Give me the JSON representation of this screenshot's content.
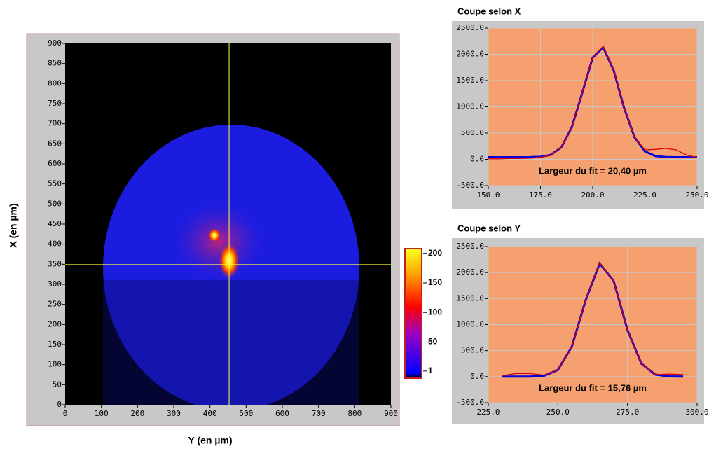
{
  "chart_data": [
    {
      "type": "heatmap",
      "xlabel": "Y (en µm)",
      "ylabel": "X (en µm)",
      "xlim": [
        0,
        900
      ],
      "xticks": [
        0,
        100,
        200,
        300,
        400,
        500,
        600,
        700,
        800,
        900
      ],
      "ylim": [
        0,
        900
      ],
      "yticks": [
        0,
        50,
        100,
        150,
        200,
        250,
        300,
        350,
        400,
        450,
        500,
        550,
        600,
        650,
        700,
        750,
        800,
        850,
        900
      ],
      "crosshair": {
        "x": 453,
        "y": 349
      },
      "clim": [
        -11,
        208
      ],
      "cticks": [
        1,
        50,
        100,
        150,
        200
      ]
    },
    {
      "type": "line",
      "title": "Coupe selon X",
      "annotation": "Largeur du fit = 20,40 µm",
      "x": [
        150,
        155,
        160,
        165,
        170,
        175,
        180,
        185,
        190,
        195,
        200,
        205,
        210,
        215,
        220,
        225,
        230,
        235,
        240,
        245,
        250
      ],
      "series": [
        {
          "color": "#0000e0",
          "values": [
            40,
            40,
            40,
            40,
            41,
            48,
            85,
            230,
            610,
            1270,
            1937,
            2135,
            1700,
            981,
            422,
            152,
            63,
            44,
            40,
            40,
            40
          ]
        },
        {
          "color": "#e00000",
          "values": [
            10,
            10,
            15,
            15,
            20,
            40,
            80,
            230,
            600,
            1280,
            1950,
            2150,
            1710,
            980,
            430,
            180,
            190,
            210,
            180,
            80,
            40
          ]
        }
      ],
      "xlim": [
        150,
        250
      ],
      "xticks": [
        {
          "value": 150,
          "label": "150.0"
        },
        {
          "value": 175,
          "label": "175.0"
        },
        {
          "value": 200,
          "label": "200.0"
        },
        {
          "value": 225,
          "label": "225.0"
        },
        {
          "value": 250,
          "label": "250.0"
        }
      ],
      "ylim": [
        -500,
        2500
      ],
      "yticks": [
        {
          "value": -500,
          "label": "-500.0"
        },
        {
          "value": 0,
          "label": "0.0"
        },
        {
          "value": 500,
          "label": "500.0"
        },
        {
          "value": 1000,
          "label": "1000.0"
        },
        {
          "value": 1500,
          "label": "1500.0"
        },
        {
          "value": 2000,
          "label": "2000.0"
        },
        {
          "value": 2500,
          "label": "2500.0"
        }
      ],
      "grid": true
    },
    {
      "type": "line",
      "title": "Coupe selon Y",
      "annotation": "Largeur du fit = 15,76 µm",
      "x": [
        230,
        235,
        240,
        245,
        250,
        255,
        260,
        265,
        270,
        275,
        280,
        285,
        290,
        295
      ],
      "series": [
        {
          "color": "#0000e0",
          "values": [
            0,
            0,
            1,
            16,
            129,
            575,
            1475,
            2175,
            1842,
            894,
            249,
            40,
            4,
            0
          ]
        },
        {
          "color": "#e00000",
          "values": [
            20,
            60,
            60,
            30,
            130,
            570,
            1480,
            2190,
            1840,
            890,
            250,
            40,
            50,
            40
          ]
        }
      ],
      "xlim": [
        225,
        300
      ],
      "xticks": [
        {
          "value": 225,
          "label": "225.0"
        },
        {
          "value": 250,
          "label": "250.0"
        },
        {
          "value": 275,
          "label": "275.0"
        },
        {
          "value": 300,
          "label": "300.0"
        }
      ],
      "ylim": [
        -500,
        2500
      ],
      "yticks": [
        {
          "value": -500,
          "label": "-500.0"
        },
        {
          "value": 0,
          "label": "0.0"
        },
        {
          "value": 500,
          "label": "500.0"
        },
        {
          "value": 1000,
          "label": "1000.0"
        },
        {
          "value": 1500,
          "label": "1500.0"
        },
        {
          "value": 2000,
          "label": "2000.0"
        },
        {
          "value": 2500,
          "label": "2500.0"
        }
      ],
      "grid": true
    }
  ]
}
